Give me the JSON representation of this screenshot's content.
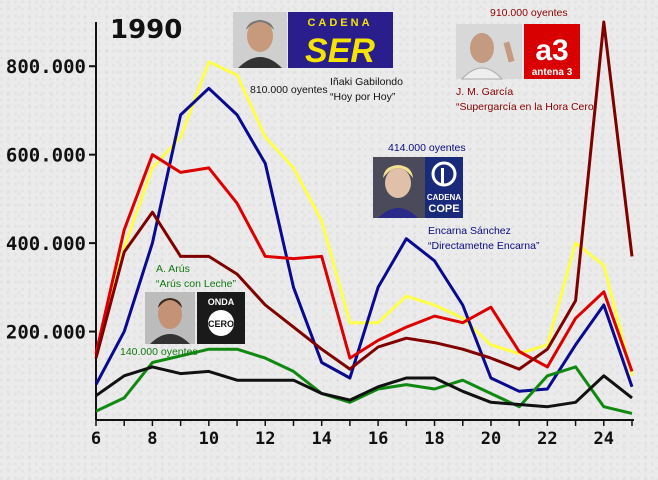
{
  "chart_data": {
    "type": "line",
    "title": "1990",
    "x": [
      6,
      7,
      8,
      9,
      10,
      11,
      12,
      13,
      14,
      15,
      16,
      17,
      18,
      19,
      20,
      21,
      22,
      23,
      24,
      25
    ],
    "xticks": [
      "6",
      "8",
      "10",
      "12",
      "14",
      "16",
      "18",
      "20",
      "22",
      "24"
    ],
    "yticks": [
      "200.000",
      "400.000",
      "600.000",
      "800.000"
    ],
    "ylim": [
      0,
      900000
    ],
    "xlim": [
      6,
      25
    ],
    "grid": false,
    "series": [
      {
        "color": "#ffff44",
        "values": [
          150000,
          390000,
          570000,
          640000,
          810000,
          780000,
          640000,
          570000,
          450000,
          220000,
          220000,
          280000,
          260000,
          230000,
          170000,
          150000,
          170000,
          400000,
          350000,
          100000
        ]
      },
      {
        "color": "#0a0a90",
        "values": [
          80000,
          200000,
          400000,
          690000,
          750000,
          690000,
          580000,
          300000,
          130000,
          95000,
          300000,
          410000,
          360000,
          260000,
          95000,
          65000,
          70000,
          170000,
          260000,
          75000
        ]
      },
      {
        "color": "#dd0000",
        "values": [
          150000,
          430000,
          600000,
          560000,
          570000,
          490000,
          370000,
          365000,
          370000,
          140000,
          180000,
          210000,
          235000,
          220000,
          255000,
          155000,
          120000,
          230000,
          290000,
          110000
        ]
      },
      {
        "color": "#800000",
        "values": [
          140000,
          380000,
          470000,
          370000,
          370000,
          330000,
          260000,
          210000,
          160000,
          115000,
          165000,
          185000,
          175000,
          160000,
          140000,
          115000,
          160000,
          270000,
          900000,
          370000
        ]
      },
      {
        "color": "#118811",
        "values": [
          20000,
          50000,
          130000,
          145000,
          160000,
          160000,
          140000,
          110000,
          60000,
          40000,
          70000,
          80000,
          70000,
          90000,
          60000,
          30000,
          100000,
          120000,
          30000,
          15000
        ]
      },
      {
        "color": "#111111",
        "values": [
          55000,
          100000,
          120000,
          105000,
          110000,
          90000,
          90000,
          90000,
          60000,
          45000,
          75000,
          95000,
          95000,
          65000,
          40000,
          35000,
          30000,
          40000,
          100000,
          50000
        ]
      }
    ]
  },
  "annotations": {
    "ser": {
      "logo_top": "CADENA",
      "logo_main": "SER",
      "audience": "810.000 oyentes",
      "name": "Iñaki Gabilondo",
      "program": "“Hoy por Hoy”"
    },
    "antena3": {
      "logo_main": "a3",
      "logo_sub": "antena 3",
      "audience": "910.000 oyentes",
      "name": "J. M. García",
      "program": "“Supergarcía en la Hora Cero”"
    },
    "cope": {
      "logo_top": "CADENA",
      "logo_main": "COPE",
      "audience": "414.000 oyentes",
      "name": "Encarna Sánchez",
      "program": "“Directametne Encarna”"
    },
    "onda": {
      "logo_top": "ONDA",
      "logo_main": "CERO",
      "audience": "140.000 oyentes",
      "name": "A. Arús",
      "program": "“Arús con Leche”"
    }
  }
}
